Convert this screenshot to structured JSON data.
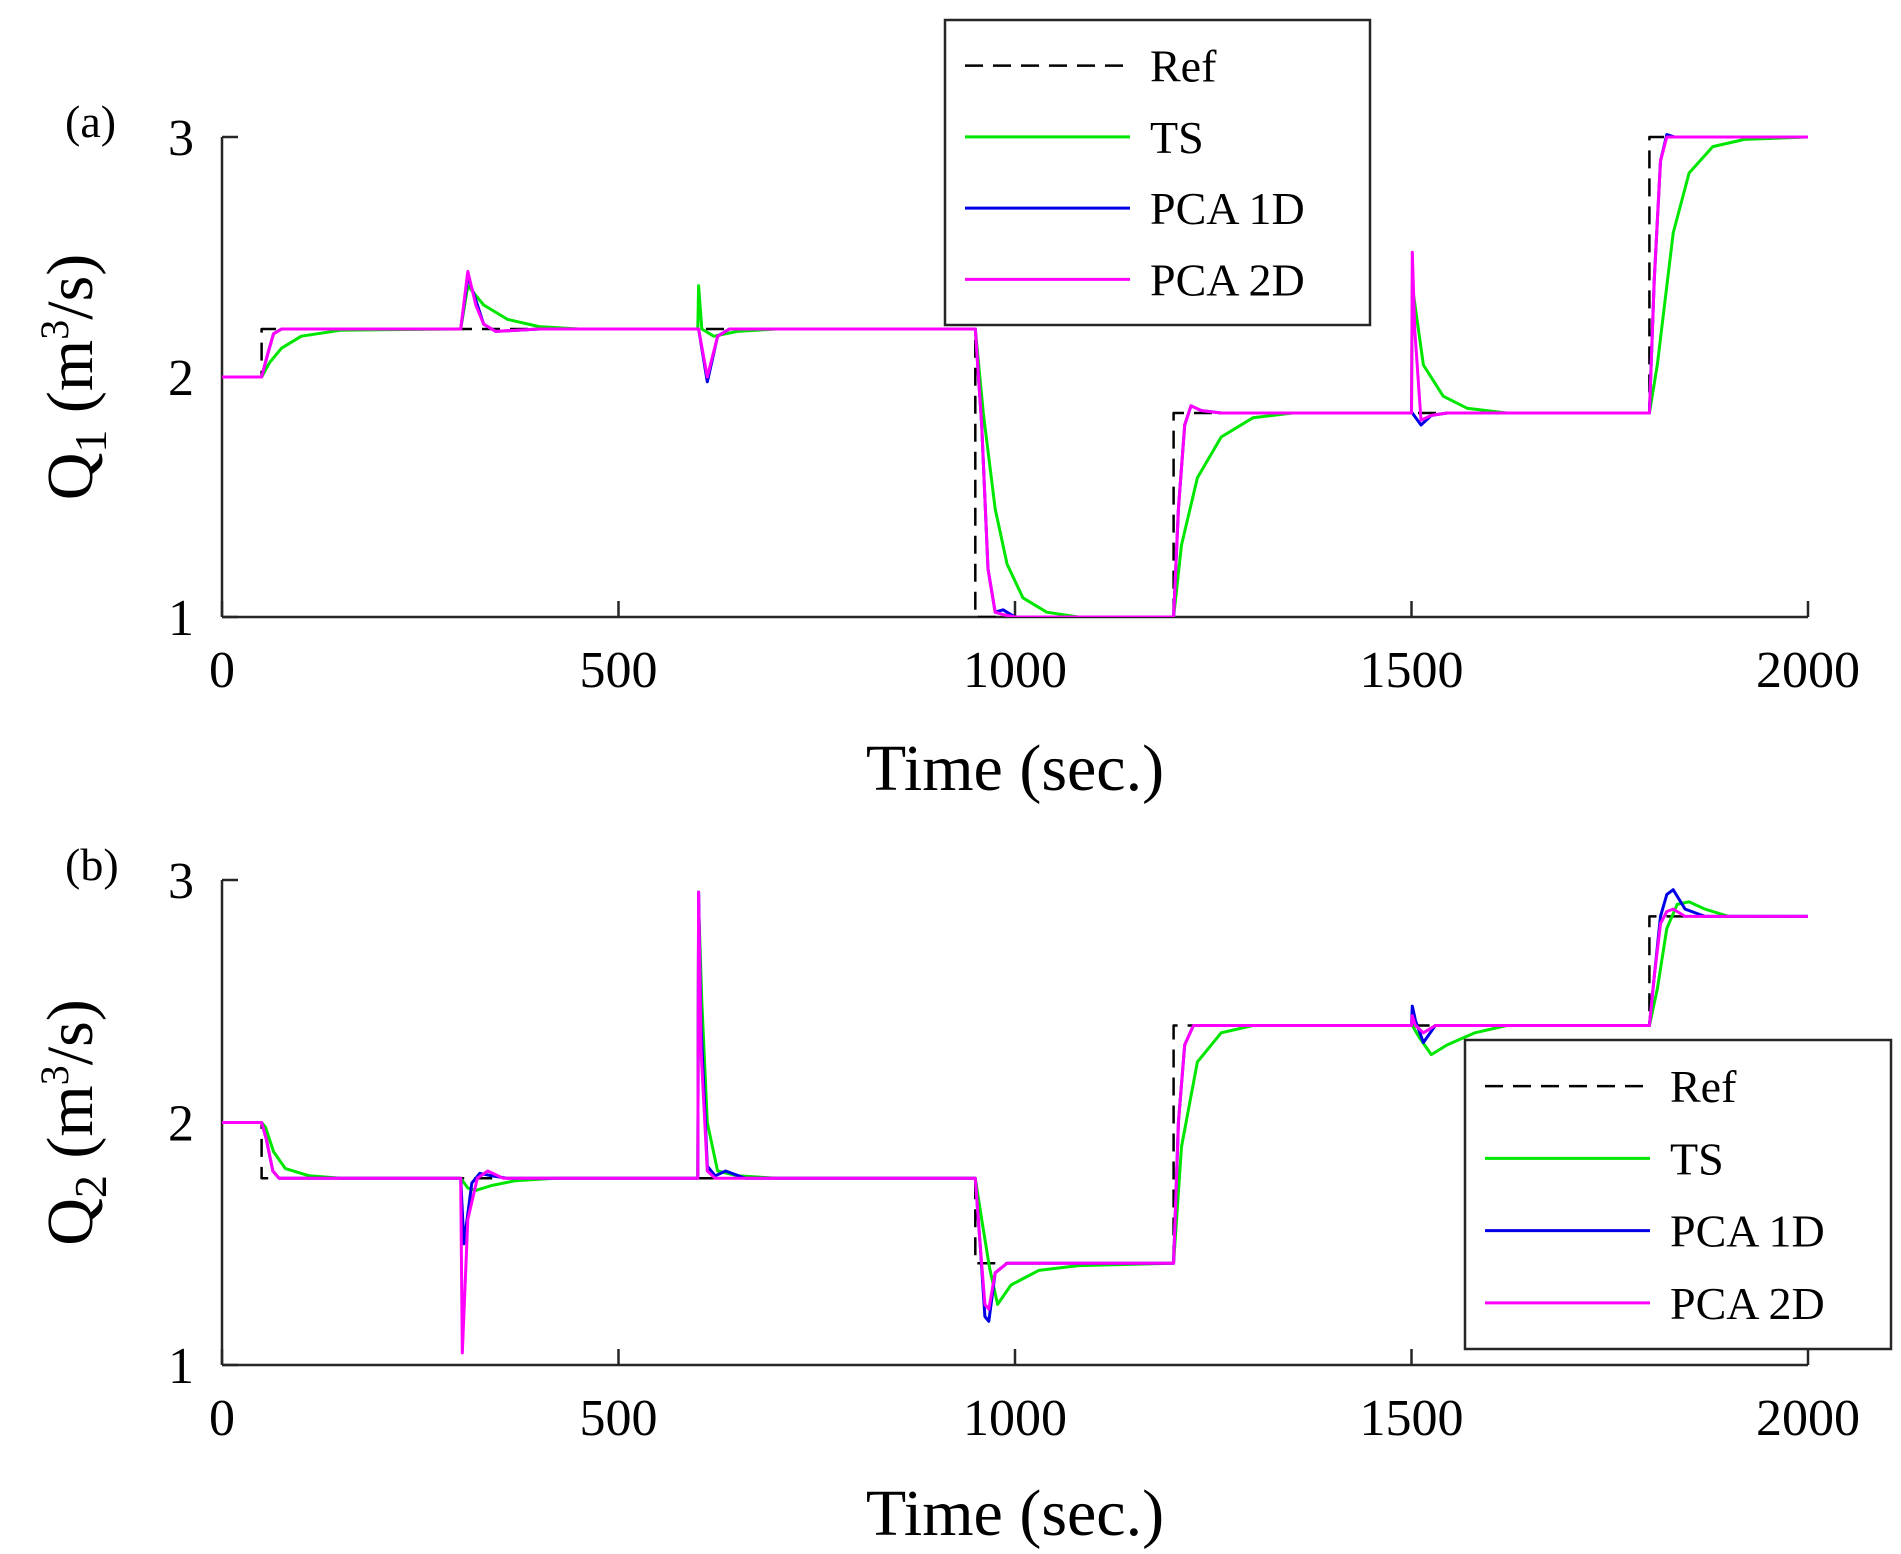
{
  "chart_data": [
    {
      "type": "line",
      "panel_label": "(a)",
      "xlabel": "Time (sec.)",
      "ylabel": {
        "var": "Q",
        "sub": "1",
        "unit_open": "(m",
        "sup": "3",
        "unit_close": "/s)"
      },
      "xlim": [
        0,
        2000
      ],
      "ylim": [
        1,
        3
      ],
      "xticks": [
        0,
        500,
        1000,
        1500,
        2000
      ],
      "xtick_labels": [
        "0",
        "500",
        "1000",
        "1500",
        "2000"
      ],
      "yticks": [
        1,
        2,
        3
      ],
      "ytick_labels": [
        "1",
        "2",
        "3"
      ],
      "legend_position": "top-center",
      "legend": [
        "Ref",
        "TS",
        "PCA 1D",
        "PCA 2D"
      ],
      "series": [
        {
          "name": "Ref",
          "style": "dashed",
          "color": "#000000",
          "x": [
            0,
            50,
            50,
            300,
            300,
            600,
            600,
            950,
            950,
            1200,
            1200,
            1500,
            1500,
            1800,
            1800,
            2000
          ],
          "y": [
            2.0,
            2.0,
            2.2,
            2.2,
            2.2,
            2.2,
            2.2,
            2.2,
            1.0,
            1.0,
            1.85,
            1.85,
            1.85,
            1.85,
            3.0,
            3.0
          ]
        },
        {
          "name": "TS",
          "style": "solid",
          "color": "#00e600",
          "x": [
            0,
            50,
            60,
            75,
            100,
            150,
            300,
            301,
            310,
            330,
            360,
            400,
            450,
            600,
            601,
            605,
            620,
            650,
            700,
            950,
            960,
            975,
            990,
            1010,
            1040,
            1080,
            1200,
            1210,
            1230,
            1260,
            1300,
            1350,
            1500,
            1501,
            1515,
            1540,
            1570,
            1620,
            1800,
            1810,
            1830,
            1850,
            1880,
            1920,
            2000
          ],
          "y": [
            2.0,
            2.0,
            2.06,
            2.12,
            2.17,
            2.195,
            2.2,
            2.2,
            2.38,
            2.3,
            2.24,
            2.21,
            2.2,
            2.2,
            2.38,
            2.2,
            2.17,
            2.19,
            2.2,
            2.2,
            1.85,
            1.45,
            1.22,
            1.08,
            1.02,
            1.0,
            1.0,
            1.3,
            1.58,
            1.75,
            1.83,
            1.85,
            1.85,
            2.38,
            2.05,
            1.92,
            1.87,
            1.85,
            1.85,
            2.05,
            2.6,
            2.85,
            2.96,
            2.99,
            3.0
          ]
        },
        {
          "name": "PCA 1D",
          "style": "solid",
          "color": "#0000e6",
          "x": [
            0,
            50,
            58,
            65,
            75,
            85,
            300,
            301,
            310,
            320,
            330,
            345,
            400,
            600,
            601,
            612,
            625,
            640,
            700,
            950,
            958,
            966,
            975,
            985,
            1000,
            1200,
            1206,
            1214,
            1222,
            1235,
            1260,
            1500,
            1501,
            1512,
            1525,
            1545,
            1600,
            1800,
            1806,
            1814,
            1822,
            1832,
            1850,
            2000
          ],
          "y": [
            2.0,
            2.0,
            2.1,
            2.18,
            2.2,
            2.2,
            2.2,
            2.2,
            2.42,
            2.32,
            2.22,
            2.19,
            2.2,
            2.2,
            2.2,
            1.98,
            2.17,
            2.2,
            2.2,
            2.2,
            1.8,
            1.2,
            1.02,
            1.03,
            1.0,
            1.0,
            1.45,
            1.8,
            1.88,
            1.86,
            1.85,
            1.85,
            1.85,
            1.8,
            1.84,
            1.85,
            1.85,
            1.85,
            2.4,
            2.9,
            3.01,
            3.0,
            3.0,
            3.0
          ]
        },
        {
          "name": "PCA 2D",
          "style": "solid",
          "color": "#ff00ff",
          "x": [
            0,
            50,
            58,
            65,
            75,
            85,
            300,
            301,
            310,
            320,
            330,
            345,
            400,
            600,
            601,
            612,
            625,
            640,
            700,
            950,
            958,
            966,
            975,
            985,
            1000,
            1200,
            1206,
            1214,
            1222,
            1235,
            1260,
            1500,
            1501,
            1504,
            1512,
            1525,
            1545,
            1600,
            1800,
            1806,
            1814,
            1822,
            1832,
            1850,
            2000
          ],
          "y": [
            2.0,
            2.0,
            2.1,
            2.18,
            2.2,
            2.2,
            2.2,
            2.2,
            2.44,
            2.3,
            2.22,
            2.19,
            2.2,
            2.2,
            2.2,
            2.0,
            2.17,
            2.2,
            2.2,
            2.2,
            1.8,
            1.2,
            1.02,
            1.01,
            1.0,
            1.0,
            1.45,
            1.8,
            1.88,
            1.86,
            1.85,
            1.85,
            2.52,
            2.2,
            1.82,
            1.84,
            1.85,
            1.85,
            1.85,
            2.4,
            2.9,
            3.0,
            3.0,
            3.0,
            3.0
          ]
        }
      ]
    },
    {
      "type": "line",
      "panel_label": "(b)",
      "xlabel": "Time (sec.)",
      "ylabel": {
        "var": "Q",
        "sub": "2",
        "unit_open": "(m",
        "sup": "3",
        "unit_close": "/s)"
      },
      "xlim": [
        0,
        2000
      ],
      "ylim": [
        1,
        3
      ],
      "xticks": [
        0,
        500,
        1000,
        1500,
        2000
      ],
      "xtick_labels": [
        "0",
        "500",
        "1000",
        "1500",
        "2000"
      ],
      "yticks": [
        1,
        2,
        3
      ],
      "ytick_labels": [
        "1",
        "2",
        "3"
      ],
      "legend_position": "bottom-right",
      "legend": [
        "Ref",
        "TS",
        "PCA 1D",
        "PCA 2D"
      ],
      "series": [
        {
          "name": "Ref",
          "style": "dashed",
          "color": "#000000",
          "x": [
            0,
            50,
            50,
            300,
            300,
            600,
            600,
            950,
            950,
            1200,
            1200,
            1500,
            1500,
            1800,
            1800,
            2000
          ],
          "y": [
            2.0,
            2.0,
            1.77,
            1.77,
            1.77,
            1.77,
            1.77,
            1.77,
            1.42,
            1.42,
            2.4,
            2.4,
            2.4,
            2.4,
            2.85,
            2.85
          ]
        },
        {
          "name": "TS",
          "style": "solid",
          "color": "#00e600",
          "x": [
            0,
            50,
            55,
            65,
            80,
            110,
            150,
            300,
            301,
            310,
            320,
            340,
            370,
            420,
            600,
            601,
            605,
            612,
            625,
            650,
            700,
            950,
            958,
            968,
            978,
            995,
            1030,
            1080,
            1200,
            1210,
            1230,
            1260,
            1300,
            1500,
            1501,
            1510,
            1525,
            1545,
            1580,
            1620,
            1800,
            1810,
            1822,
            1835,
            1850,
            1870,
            1900,
            2000
          ],
          "y": [
            2.0,
            2.0,
            1.98,
            1.88,
            1.81,
            1.78,
            1.77,
            1.77,
            1.77,
            1.73,
            1.72,
            1.74,
            1.76,
            1.77,
            1.77,
            2.9,
            2.5,
            2.0,
            1.8,
            1.78,
            1.77,
            1.77,
            1.6,
            1.4,
            1.25,
            1.33,
            1.39,
            1.41,
            1.42,
            1.9,
            2.25,
            2.37,
            2.4,
            2.4,
            2.4,
            2.35,
            2.28,
            2.32,
            2.37,
            2.4,
            2.4,
            2.55,
            2.8,
            2.9,
            2.91,
            2.88,
            2.85,
            2.85
          ]
        },
        {
          "name": "PCA 1D",
          "style": "solid",
          "color": "#0000e6",
          "x": [
            0,
            50,
            56,
            64,
            72,
            85,
            300,
            301,
            305,
            315,
            325,
            340,
            360,
            600,
            601,
            604,
            612,
            622,
            635,
            660,
            950,
            956,
            962,
            967,
            975,
            990,
            1200,
            1206,
            1214,
            1225,
            1245,
            1500,
            1501,
            1505,
            1515,
            1530,
            1560,
            1800,
            1806,
            1814,
            1822,
            1830,
            1845,
            1870,
            2000
          ],
          "y": [
            2.0,
            2.0,
            1.93,
            1.8,
            1.77,
            1.77,
            1.77,
            1.77,
            1.5,
            1.75,
            1.79,
            1.78,
            1.77,
            1.77,
            2.95,
            2.4,
            1.82,
            1.78,
            1.8,
            1.77,
            1.77,
            1.5,
            1.2,
            1.18,
            1.38,
            1.42,
            1.42,
            2.0,
            2.32,
            2.4,
            2.4,
            2.4,
            2.48,
            2.42,
            2.33,
            2.4,
            2.4,
            2.4,
            2.6,
            2.85,
            2.94,
            2.96,
            2.88,
            2.85,
            2.85
          ]
        },
        {
          "name": "PCA 2D",
          "style": "solid",
          "color": "#ff00ff",
          "x": [
            0,
            50,
            56,
            64,
            72,
            85,
            300,
            301,
            303,
            310,
            322,
            335,
            355,
            600,
            601,
            604,
            612,
            622,
            640,
            950,
            956,
            962,
            967,
            975,
            990,
            1200,
            1206,
            1214,
            1225,
            1245,
            1500,
            1501,
            1505,
            1515,
            1530,
            1560,
            1800,
            1806,
            1814,
            1822,
            1830,
            1845,
            1870,
            2000
          ],
          "y": [
            2.0,
            2.0,
            1.93,
            1.8,
            1.77,
            1.77,
            1.77,
            1.77,
            1.05,
            1.6,
            1.77,
            1.8,
            1.77,
            1.77,
            2.95,
            2.3,
            1.8,
            1.77,
            1.77,
            1.77,
            1.5,
            1.25,
            1.23,
            1.38,
            1.42,
            1.42,
            2.0,
            2.32,
            2.4,
            2.4,
            2.4,
            2.44,
            2.4,
            2.37,
            2.4,
            2.4,
            2.4,
            2.6,
            2.82,
            2.87,
            2.88,
            2.85,
            2.85,
            2.85
          ]
        }
      ]
    }
  ]
}
